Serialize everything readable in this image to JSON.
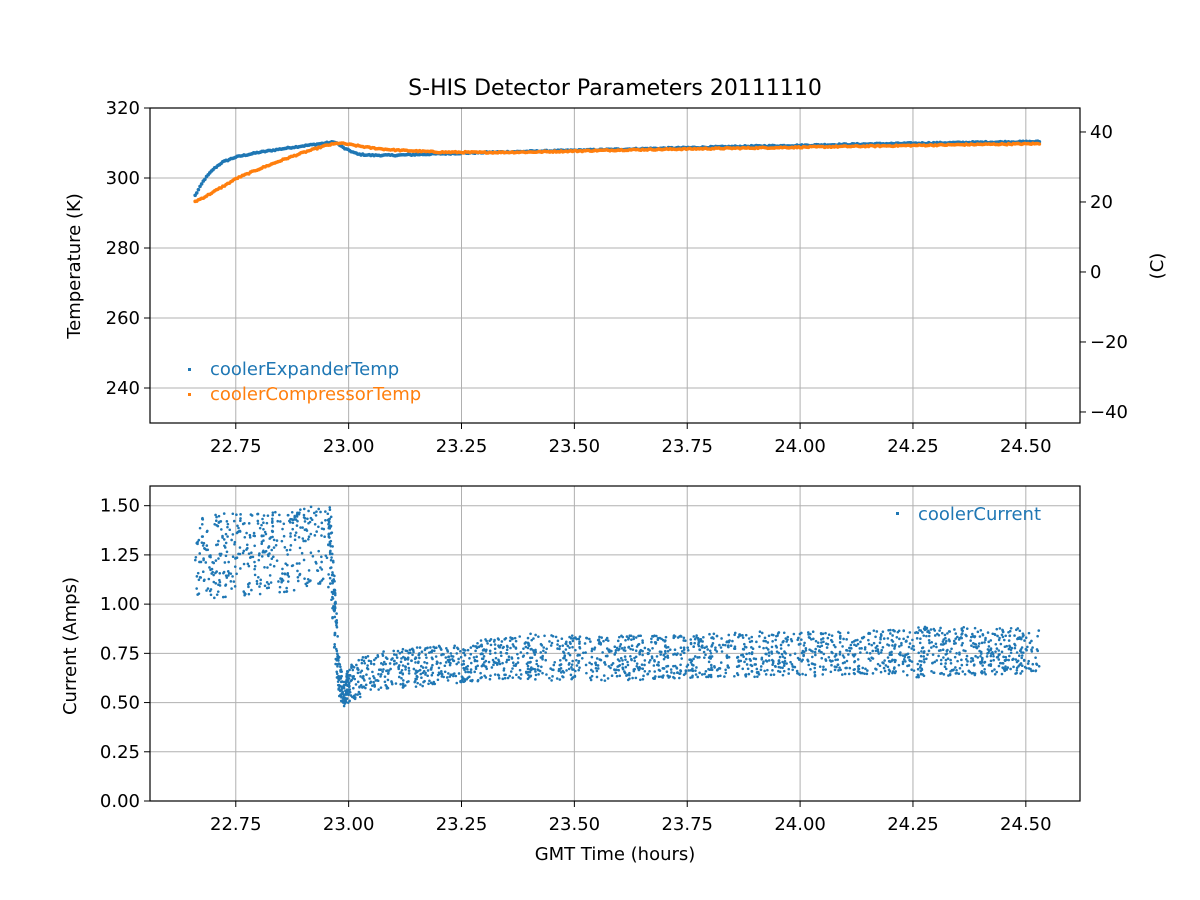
{
  "chart_data": [
    {
      "type": "scatter",
      "title": "S-HIS Detector Parameters 20111110",
      "xlabel": "",
      "ylabel": "Temperature (K)",
      "ylabel_right": "(C)",
      "xlim": [
        22.56,
        24.62
      ],
      "ylim": [
        230,
        320
      ],
      "ylim_right_celsius": [
        -43.15,
        46.85
      ],
      "xticks": [
        "22.75",
        "23.00",
        "23.25",
        "23.50",
        "23.75",
        "24.00",
        "24.25",
        "24.50"
      ],
      "yticks": [
        "240",
        "260",
        "280",
        "300",
        "320"
      ],
      "yticks_right": [
        "−40",
        "−20",
        "0",
        "20",
        "40"
      ],
      "grid": true,
      "legend_position": "lower-left",
      "series": [
        {
          "name": "coolerExpanderTemp",
          "color": "#1f77b4",
          "x": [
            22.66,
            22.68,
            22.7,
            22.72,
            22.75,
            22.8,
            22.85,
            22.9,
            22.95,
            22.97,
            22.99,
            23.02,
            23.05,
            23.1,
            23.2,
            23.3,
            23.4,
            23.5,
            23.6,
            23.7,
            23.8,
            23.9,
            24.0,
            24.1,
            24.2,
            24.3,
            24.4,
            24.53
          ],
          "y": [
            295.0,
            299.5,
            302.5,
            304.5,
            306.0,
            307.3,
            308.3,
            309.2,
            310.0,
            310.3,
            308.5,
            306.8,
            306.5,
            306.5,
            306.9,
            307.3,
            307.6,
            307.9,
            308.2,
            308.5,
            308.8,
            309.1,
            309.3,
            309.6,
            309.8,
            310.0,
            310.2,
            310.4
          ]
        },
        {
          "name": "coolerCompressorTemp",
          "color": "#ff7f0e",
          "x": [
            22.66,
            22.68,
            22.7,
            22.73,
            22.75,
            22.8,
            22.85,
            22.9,
            22.95,
            22.98,
            23.0,
            23.05,
            23.1,
            23.2,
            23.3,
            23.4,
            23.5,
            23.6,
            23.7,
            23.8,
            23.9,
            24.0,
            24.1,
            24.2,
            24.3,
            24.4,
            24.53
          ],
          "y": [
            293.3,
            294.5,
            296.0,
            298.2,
            299.8,
            302.5,
            305.0,
            307.3,
            309.3,
            310.0,
            309.6,
            308.6,
            308.0,
            307.4,
            307.3,
            307.4,
            307.7,
            308.0,
            308.2,
            308.4,
            308.6,
            308.8,
            309.0,
            309.2,
            309.4,
            309.6,
            309.8
          ]
        }
      ]
    },
    {
      "type": "scatter",
      "title": "",
      "xlabel": "GMT Time (hours)",
      "ylabel": "Current (Amps)",
      "xlim": [
        22.56,
        24.62
      ],
      "ylim": [
        0.0,
        1.6
      ],
      "xticks": [
        "22.75",
        "23.00",
        "23.25",
        "23.50",
        "23.75",
        "24.00",
        "24.25",
        "24.50"
      ],
      "yticks": [
        "0.00",
        "0.25",
        "0.50",
        "0.75",
        "1.00",
        "1.25",
        "1.50"
      ],
      "grid": true,
      "legend_position": "top-right",
      "series": [
        {
          "name": "coolerCurrent",
          "color": "#1f77b4",
          "band_x": [
            22.66,
            22.7,
            22.75,
            22.8,
            22.85,
            22.9,
            22.96,
            22.97,
            22.98,
            22.99,
            23.0,
            23.02,
            23.05,
            23.1,
            23.15,
            23.2,
            23.25,
            23.3,
            23.4,
            23.5,
            23.6,
            23.7,
            23.8,
            23.9,
            24.0,
            24.1,
            24.2,
            24.25,
            24.3,
            24.4,
            24.53
          ],
          "band_low": [
            1.02,
            1.03,
            1.04,
            1.05,
            1.06,
            1.07,
            1.08,
            0.7,
            0.52,
            0.48,
            0.5,
            0.52,
            0.55,
            0.57,
            0.58,
            0.59,
            0.6,
            0.61,
            0.62,
            0.6,
            0.61,
            0.62,
            0.63,
            0.63,
            0.63,
            0.64,
            0.64,
            0.62,
            0.63,
            0.64,
            0.65
          ],
          "band_high": [
            1.46,
            1.46,
            1.46,
            1.47,
            1.48,
            1.49,
            1.51,
            1.08,
            0.7,
            0.62,
            0.68,
            0.72,
            0.75,
            0.77,
            0.78,
            0.79,
            0.8,
            0.82,
            0.85,
            0.84,
            0.84,
            0.84,
            0.85,
            0.86,
            0.86,
            0.86,
            0.87,
            0.88,
            0.89,
            0.88,
            0.88
          ]
        }
      ]
    }
  ]
}
